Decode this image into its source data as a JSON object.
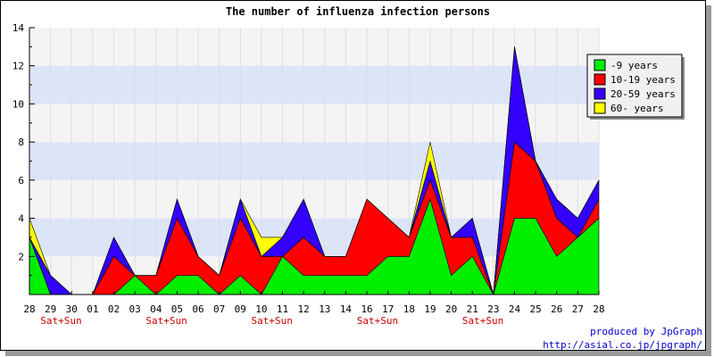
{
  "chart_data": {
    "type": "area",
    "stacked": true,
    "title": "The number of influenza infection persons",
    "x": [
      "28",
      "29",
      "30",
      "01",
      "02",
      "03",
      "04",
      "05",
      "06",
      "07",
      "09",
      "10",
      "11",
      "12",
      "13",
      "14",
      "16",
      "17",
      "18",
      "19",
      "20",
      "21",
      "23",
      "24",
      "25",
      "26",
      "27",
      "28"
    ],
    "weekend_marks": [
      {
        "after_index": 1,
        "label": "Sat+Sun"
      },
      {
        "after_index": 6,
        "label": "Sat+Sun"
      },
      {
        "after_index": 11,
        "label": "Sat+Sun"
      },
      {
        "after_index": 16,
        "label": "Sat+Sun"
      },
      {
        "after_index": 21,
        "label": "Sat+Sun"
      }
    ],
    "ylim": [
      0,
      14
    ],
    "yticks": [
      2,
      4,
      6,
      8,
      10,
      12,
      14
    ],
    "legend_position": "top-right",
    "series": [
      {
        "name": "-9 years",
        "color": "#00ee00",
        "values": [
          3,
          0,
          0,
          0,
          0,
          1,
          0,
          1,
          1,
          0,
          1,
          0,
          2,
          1,
          1,
          1,
          1,
          2,
          2,
          5,
          1,
          2,
          0,
          4,
          4,
          2,
          3,
          4
        ]
      },
      {
        "name": "10-19 years",
        "color": "#ff0000",
        "values": [
          0,
          0,
          0,
          0,
          2,
          0,
          1,
          3,
          1,
          1,
          3,
          2,
          0,
          2,
          1,
          1,
          4,
          2,
          1,
          1,
          2,
          1,
          0,
          4,
          3,
          2,
          0,
          1
        ]
      },
      {
        "name": "20-59 years",
        "color": "#3300ff",
        "values": [
          0,
          1,
          0,
          0,
          1,
          0,
          0,
          1,
          0,
          0,
          1,
          0,
          1,
          2,
          0,
          0,
          0,
          0,
          0,
          1,
          0,
          1,
          0,
          5,
          0,
          1,
          1,
          1
        ]
      },
      {
        "name": "60- years",
        "color": "#ffff00",
        "values": [
          1,
          0,
          0,
          0,
          0,
          0,
          0,
          0,
          0,
          0,
          0,
          1,
          0,
          0,
          0,
          0,
          0,
          0,
          0,
          1,
          0,
          0,
          0,
          0,
          0,
          0,
          0,
          0
        ]
      }
    ]
  },
  "credits": {
    "line1": "produced by JpGraph",
    "line2": "http://asial.co.jp/jpgraph/"
  }
}
